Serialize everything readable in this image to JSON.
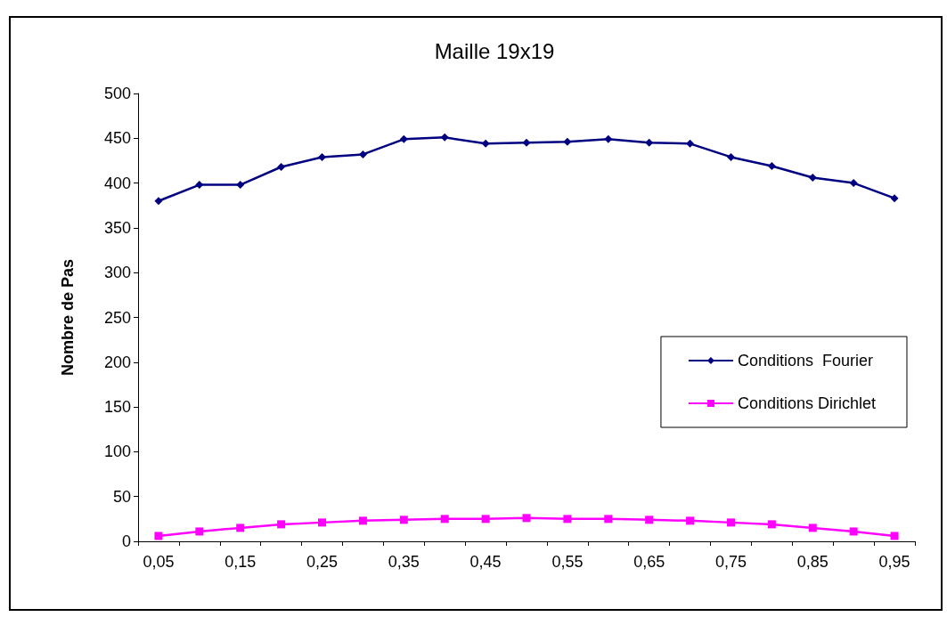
{
  "chart_data": {
    "type": "line",
    "title": "Maille 19x19",
    "ylabel": "Nombre de Pas",
    "categories": [
      "0,05",
      null,
      "0,15",
      null,
      "0,25",
      null,
      "0,35",
      null,
      "0,45",
      null,
      "0,55",
      null,
      "0,65",
      null,
      "0,75",
      null,
      "0,85",
      null,
      "0,95"
    ],
    "series": [
      {
        "name": "Conditions  Fourier",
        "color": "#000080",
        "marker": "diamond",
        "values": [
          380,
          398,
          398,
          418,
          429,
          432,
          449,
          451,
          444,
          445,
          446,
          449,
          445,
          444,
          429,
          419,
          406,
          400,
          383
        ]
      },
      {
        "name": "Conditions Dirichlet",
        "color": "#ff00ff",
        "marker": "square",
        "values": [
          6,
          11,
          15,
          19,
          21,
          23,
          24,
          25,
          25,
          26,
          25,
          25,
          24,
          23,
          21,
          19,
          15,
          11,
          6
        ]
      }
    ],
    "ylim": [
      0,
      500
    ],
    "yticks": [
      0,
      50,
      100,
      150,
      200,
      250,
      300,
      350,
      400,
      450,
      500
    ],
    "grid": false,
    "legend": "right",
    "line_style": "solid"
  }
}
